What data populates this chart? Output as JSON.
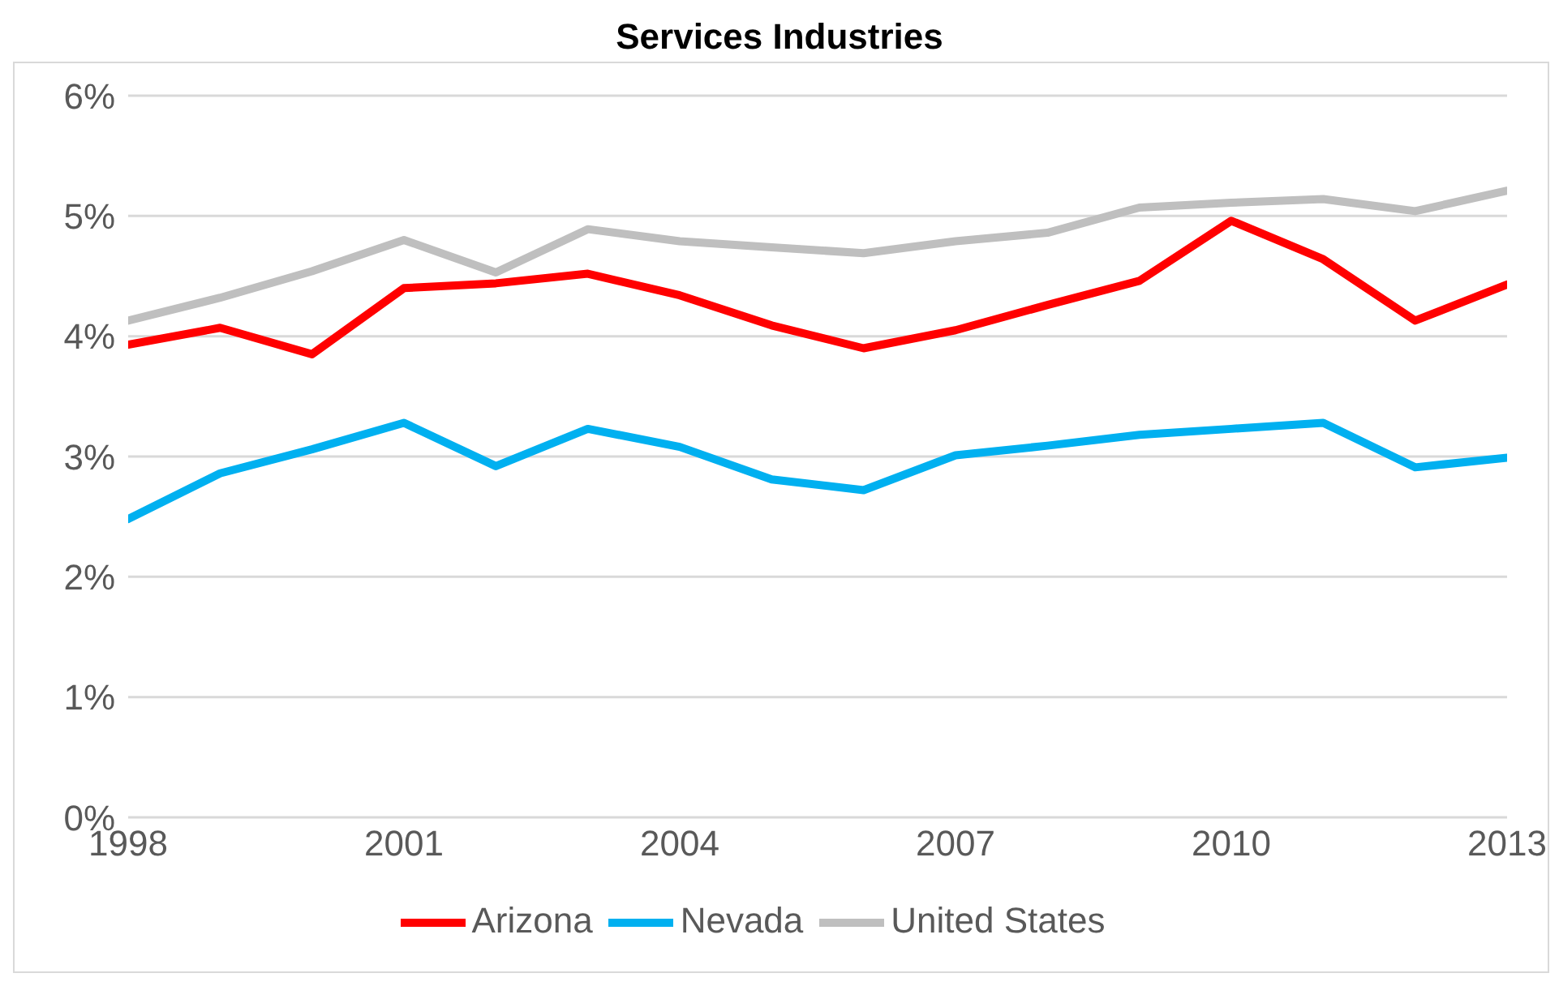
{
  "chart_data": {
    "type": "line",
    "title": "Services Industries",
    "x": [
      1998,
      1999,
      2000,
      2001,
      2002,
      2003,
      2004,
      2005,
      2006,
      2007,
      2008,
      2009,
      2010,
      2011,
      2012,
      2013
    ],
    "series": [
      {
        "name": "United States",
        "color": "#bfbfbf",
        "values": [
          4.13,
          4.32,
          4.54,
          4.8,
          4.53,
          4.89,
          4.79,
          4.74,
          4.69,
          4.79,
          4.86,
          5.07,
          5.11,
          5.14,
          5.04,
          5.21
        ]
      },
      {
        "name": "Arizona",
        "color": "#ff0000",
        "values": [
          3.93,
          4.07,
          3.85,
          4.4,
          4.44,
          4.52,
          4.34,
          4.09,
          3.9,
          4.05,
          4.26,
          4.46,
          4.96,
          4.64,
          4.13,
          4.43
        ]
      },
      {
        "name": "Nevada",
        "color": "#00b0f0",
        "values": [
          2.48,
          2.86,
          3.06,
          3.28,
          2.92,
          3.23,
          3.08,
          2.81,
          2.72,
          3.01,
          3.09,
          3.18,
          3.23,
          3.28,
          2.91,
          2.99
        ]
      }
    ],
    "xlim": [
      1998,
      2013
    ],
    "xticks": [
      1998,
      2001,
      2004,
      2007,
      2010,
      2013
    ],
    "ylim": [
      0,
      6
    ],
    "yticks": [
      {
        "value": 0,
        "label": "0%"
      },
      {
        "value": 1,
        "label": "1%"
      },
      {
        "value": 2,
        "label": "2%"
      },
      {
        "value": 3,
        "label": "3%"
      },
      {
        "value": 4,
        "label": "4%"
      },
      {
        "value": 5,
        "label": "5%"
      },
      {
        "value": 6,
        "label": "6%"
      }
    ],
    "grid": "y",
    "legend": "bottom",
    "marker": "none",
    "line_style": "solid"
  }
}
